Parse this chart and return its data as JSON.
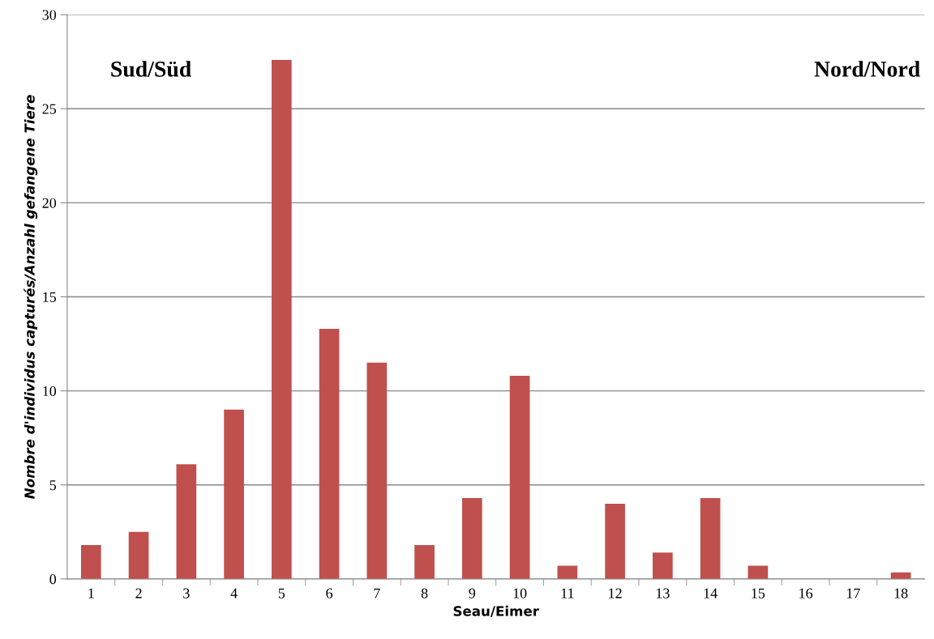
{
  "chart_data": {
    "type": "bar",
    "categories": [
      "1",
      "2",
      "3",
      "4",
      "5",
      "6",
      "7",
      "8",
      "9",
      "10",
      "11",
      "12",
      "13",
      "14",
      "15",
      "16",
      "17",
      "18"
    ],
    "values": [
      1.8,
      2.5,
      6.1,
      9.0,
      27.6,
      13.3,
      11.5,
      1.8,
      4.3,
      10.8,
      0.7,
      4.0,
      1.4,
      4.3,
      0.7,
      0,
      0,
      0.35
    ],
    "color": "#c0504d",
    "xlabel": "Seau/Eimer",
    "ylabel": "Nombre d'individus capturés/Anzahl gefangene Tiere",
    "ylim": [
      0,
      30
    ],
    "yticks": [
      0,
      5,
      10,
      15,
      20,
      25,
      30
    ],
    "grid": "y",
    "legend": false,
    "annotations": [
      "Sud/Süd",
      "Nord/Nord"
    ]
  }
}
